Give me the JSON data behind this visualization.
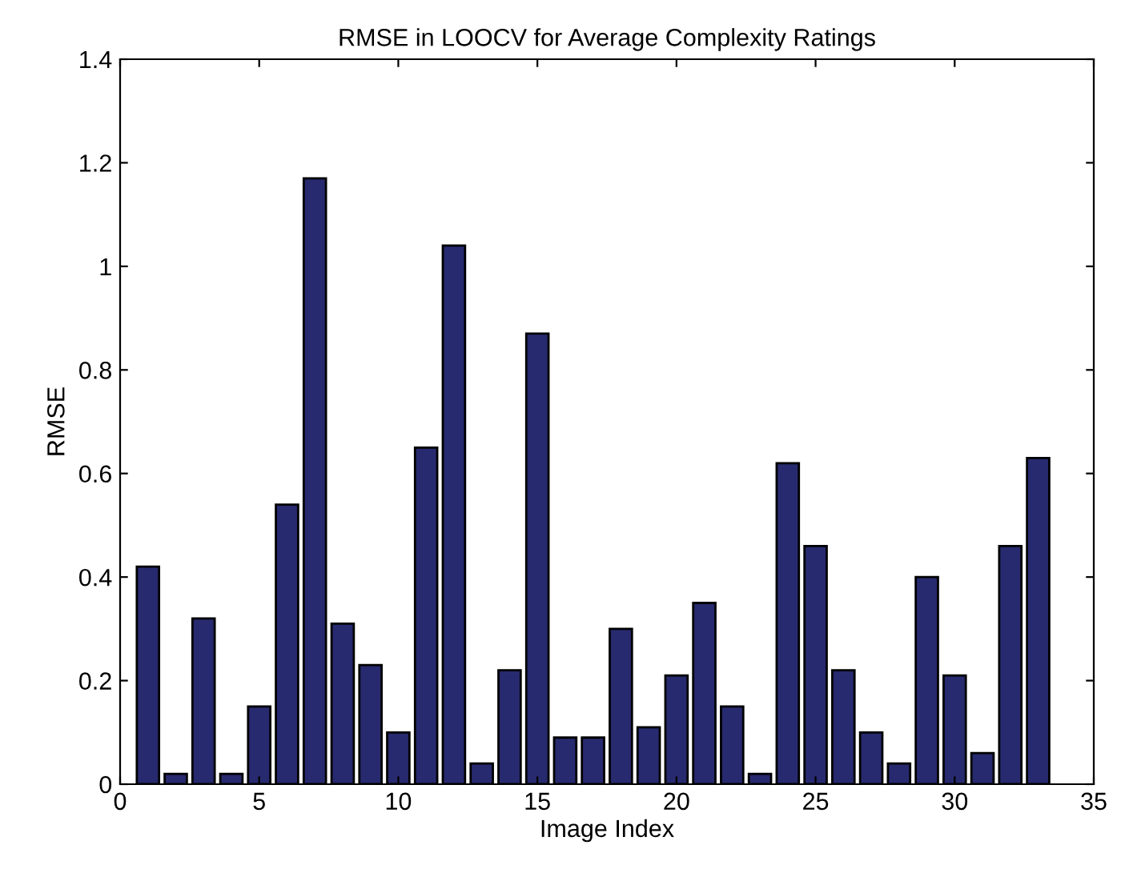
{
  "chart_data": {
    "type": "bar",
    "title": "RMSE in LOOCV for Average Complexity Ratings",
    "xlabel": "Image Index",
    "ylabel": "RMSE",
    "x": [
      1,
      2,
      3,
      4,
      5,
      6,
      7,
      8,
      9,
      10,
      11,
      12,
      13,
      14,
      15,
      16,
      17,
      18,
      19,
      20,
      21,
      22,
      23,
      24,
      25,
      26,
      27,
      28,
      29,
      30,
      31,
      32,
      33
    ],
    "values": [
      0.42,
      0.02,
      0.32,
      0.02,
      0.15,
      0.54,
      1.17,
      0.31,
      0.23,
      0.1,
      0.65,
      1.04,
      0.04,
      0.22,
      0.87,
      0.09,
      0.09,
      0.3,
      0.11,
      0.21,
      0.35,
      0.15,
      0.02,
      0.62,
      0.46,
      0.22,
      0.1,
      0.04,
      0.4,
      0.21,
      0.06,
      0.46,
      0.63
    ],
    "color": "#272a6e",
    "xlim": [
      0,
      35
    ],
    "xticks": [
      0,
      5,
      10,
      15,
      20,
      25,
      30,
      35
    ],
    "ylim": [
      0,
      1.4
    ],
    "yticks": [
      0,
      0.2,
      0.4,
      0.6,
      0.8,
      1,
      1.2,
      1.4
    ],
    "grid": false
  }
}
